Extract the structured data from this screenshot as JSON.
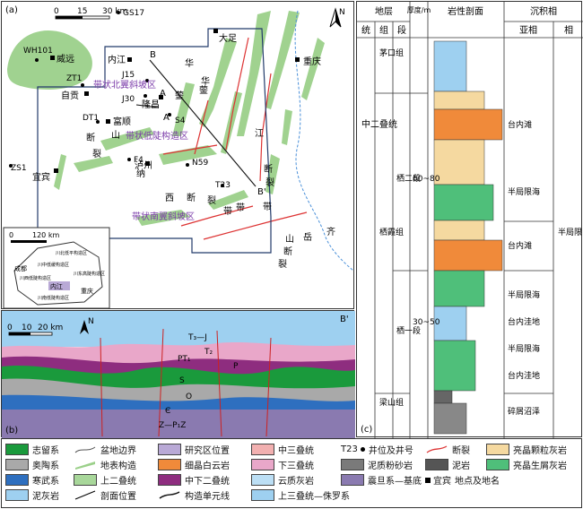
{
  "map": {
    "panel_label": "(a)",
    "scale": [
      "0",
      "15",
      "30 km"
    ],
    "north": "N",
    "wells": [
      "GS17",
      "WH101",
      "ZT1",
      "J15",
      "J30",
      "DT1",
      "S4",
      "N59",
      "T23",
      "F4",
      "ZS1"
    ],
    "places": [
      "威远",
      "内江",
      "自贡",
      "大足",
      "重庆",
      "隆昌",
      "富顺",
      "泸州",
      "宜宾"
    ],
    "section_points": [
      "A",
      "A'",
      "B",
      "B'"
    ],
    "zones": [
      "带状北翼斜坡区",
      "带状低陡构造区",
      "带状南翼斜坡区"
    ],
    "structure_chars": [
      "华",
      "蓥",
      "山",
      "断",
      "裂",
      "带",
      "纳",
      "西",
      "断",
      "裂",
      "带",
      "华",
      "蓥",
      "江",
      "断",
      "裂",
      "带",
      "齐",
      "岳",
      "山",
      "断",
      "裂"
    ],
    "inset": {
      "scale": [
        "0",
        "120 km"
      ],
      "labels": [
        "成都",
        "内江",
        "重庆",
        "川中低缓构造区",
        "川西低陡构造区",
        "川北低平构造区",
        "川东高陡构造区",
        "川南低陡构造区"
      ]
    }
  },
  "profile": {
    "panel_label": "(b)",
    "scale": [
      "0",
      "10",
      "20 km"
    ],
    "north": "N",
    "end_label": "B'",
    "layer_labels": [
      "T₃—J",
      "P",
      "PT₁",
      "T₂",
      "S",
      "O",
      "Є",
      "Z—P₁Z"
    ]
  },
  "column": {
    "header": {
      "diceng": "地层",
      "thickness": "厚度/m",
      "lithology": "岩性剖面",
      "facies": "沉积相",
      "tong": "统",
      "zu": "组",
      "duan": "段",
      "subfacies": "亚相",
      "xiang": "相"
    },
    "system": "中二叠统",
    "formations": [
      "茅口组",
      "栖霞组",
      "梁山组"
    ],
    "members": [
      "栖二段",
      "栖一段"
    ],
    "thickness_values": [
      "60~80",
      "30~50"
    ],
    "subfacies": [
      "台内滩",
      "半局限海",
      "台内滩",
      "半局限海",
      "台内洼地",
      "半局限海",
      "台内洼地",
      "碎屑沼泽"
    ],
    "facies": "半局限台地",
    "panel_label": "(c)"
  },
  "legend": {
    "items": [
      "志留系",
      "奥陶系",
      "寒武系",
      "泥灰岩",
      "盆地边界",
      "地表构造",
      "上二叠统",
      "剖面位置",
      "研究区位置",
      "细晶白云岩",
      "中下二叠统",
      "构造单元线",
      "中三叠统",
      "下三叠统",
      "云质灰岩",
      "上三叠统—侏罗系",
      "井位及井号",
      "泥质粉砂岩",
      "震旦系—基底",
      "断裂",
      "泥岩",
      "宜宾",
      "亮晶颗粒灰岩",
      "亮晶生屑灰岩"
    ],
    "t23_label": "T23",
    "well_suffix": "地点及地名"
  }
}
